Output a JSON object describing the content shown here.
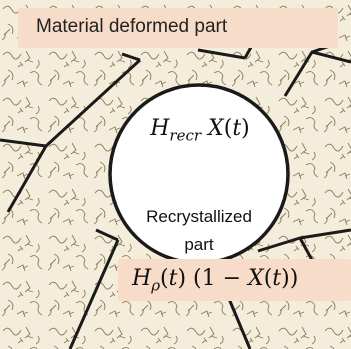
{
  "labels": {
    "deformed_part": "Material deformed part",
    "formula_recrystallized": "H_recr X(t)",
    "recrystallized_caption_line1": "Recrystallized",
    "recrystallized_caption_line2": "part",
    "formula_deformed": "H_ρ(t) (1 − X(t))"
  },
  "colors": {
    "background": "#f5eddb",
    "label_fill": "#f7ddc9",
    "grain_boundary": "#1a1a1a",
    "dislocation_lines": "#8a7a5a",
    "recrystallized_grain": "#ffffff"
  }
}
